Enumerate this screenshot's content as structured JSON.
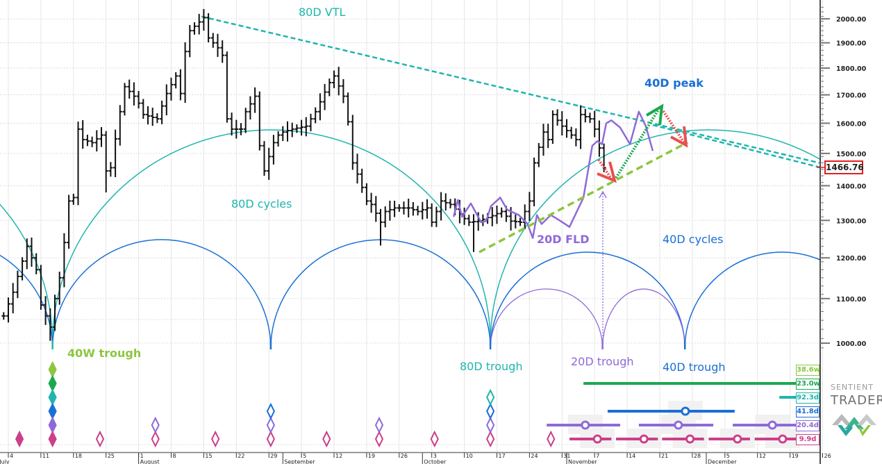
{
  "chart_data": {
    "type": "bar",
    "subtype": "ohlc-price-with-cycle-analysis",
    "price_axis": {
      "ticks": [
        "2000.00",
        "1900.00",
        "1800.00",
        "1700.00",
        "1600.00",
        "1500.00",
        "1400.00",
        "1300.00",
        "1200.00",
        "1100.00",
        "1000.00"
      ],
      "tick_values": [
        2000,
        1900,
        1800,
        1700,
        1600,
        1500,
        1400,
        1300,
        1200,
        1100,
        1000
      ],
      "scale": "log",
      "last_price": "1466.76",
      "last_price_value": 1466.76
    },
    "x_axis": {
      "day_origin": "July 4",
      "day_ticks": [
        {
          "day": 0,
          "label": "4"
        },
        {
          "day": 7,
          "label": "11"
        },
        {
          "day": 14,
          "label": "18"
        },
        {
          "day": 21,
          "label": "25"
        },
        {
          "day": 28,
          "label": "1"
        },
        {
          "day": 35,
          "label": "8"
        },
        {
          "day": 42,
          "label": "15"
        },
        {
          "day": 49,
          "label": "22"
        },
        {
          "day": 56,
          "label": "29"
        },
        {
          "day": 63,
          "label": "5"
        },
        {
          "day": 70,
          "label": "12"
        },
        {
          "day": 77,
          "label": "19"
        },
        {
          "day": 84,
          "label": "26"
        },
        {
          "day": 91,
          "label": "3"
        },
        {
          "day": 98,
          "label": "10"
        },
        {
          "day": 105,
          "label": "17"
        },
        {
          "day": 112,
          "label": "24"
        },
        {
          "day": 119,
          "label": "31"
        },
        {
          "day": 126,
          "label": "7"
        },
        {
          "day": 133,
          "label": "14"
        },
        {
          "day": 140,
          "label": "21"
        },
        {
          "day": 147,
          "label": "28"
        },
        {
          "day": 154,
          "label": "5"
        },
        {
          "day": 161,
          "label": "12"
        },
        {
          "day": 168,
          "label": "19"
        },
        {
          "day": 175,
          "label": "26"
        }
      ],
      "months": [
        {
          "day": -2.2,
          "label": "July"
        },
        {
          "day": 28,
          "label": "August"
        },
        {
          "day": 59,
          "label": "September"
        },
        {
          "day": 89,
          "label": "October"
        },
        {
          "day": 120,
          "label": "November"
        },
        {
          "day": 150,
          "label": "December"
        }
      ]
    },
    "price_close_keypoints": [
      [
        -1,
        1060
      ],
      [
        1,
        1115
      ],
      [
        4,
        1230
      ],
      [
        6,
        1170
      ],
      [
        7,
        1085
      ],
      [
        9,
        1035
      ],
      [
        10,
        1100
      ],
      [
        11,
        1150
      ],
      [
        12,
        1240
      ],
      [
        13,
        1355
      ],
      [
        14,
        1365
      ],
      [
        15,
        1580
      ],
      [
        16,
        1545
      ],
      [
        18,
        1535
      ],
      [
        20,
        1560
      ],
      [
        21,
        1445
      ],
      [
        22,
        1455
      ],
      [
        24,
        1640
      ],
      [
        25,
        1730
      ],
      [
        27,
        1695
      ],
      [
        28,
        1670
      ],
      [
        29,
        1630
      ],
      [
        32,
        1615
      ],
      [
        34,
        1705
      ],
      [
        36,
        1770
      ],
      [
        37,
        1705
      ],
      [
        38,
        1865
      ],
      [
        39,
        1950
      ],
      [
        42,
        2005
      ],
      [
        43,
        1920
      ],
      [
        45,
        1880
      ],
      [
        46,
        1850
      ],
      [
        47,
        1615
      ],
      [
        48,
        1580
      ],
      [
        50,
        1580
      ],
      [
        51,
        1640
      ],
      [
        53,
        1695
      ],
      [
        54,
        1525
      ],
      [
        55,
        1445
      ],
      [
        57,
        1535
      ],
      [
        58,
        1560
      ],
      [
        59,
        1570
      ],
      [
        61,
        1580
      ],
      [
        64,
        1590
      ],
      [
        66,
        1640
      ],
      [
        69,
        1745
      ],
      [
        70,
        1770
      ],
      [
        72,
        1695
      ],
      [
        73,
        1605
      ],
      [
        74,
        1470
      ],
      [
        75,
        1435
      ],
      [
        77,
        1355
      ],
      [
        78,
        1345
      ],
      [
        80,
        1295
      ],
      [
        81,
        1325
      ],
      [
        83,
        1335
      ],
      [
        86,
        1335
      ],
      [
        88,
        1325
      ],
      [
        90,
        1335
      ],
      [
        91,
        1295
      ],
      [
        93,
        1355
      ],
      [
        95,
        1345
      ],
      [
        98,
        1305
      ],
      [
        99,
        1295
      ],
      [
        101,
        1298
      ],
      [
        104,
        1313
      ],
      [
        106,
        1325
      ],
      [
        108,
        1298
      ],
      [
        110,
        1295
      ],
      [
        112,
        1355
      ],
      [
        113,
        1470
      ],
      [
        115,
        1570
      ],
      [
        116,
        1545
      ],
      [
        117,
        1630
      ],
      [
        119,
        1590
      ],
      [
        122,
        1545
      ],
      [
        123,
        1630
      ],
      [
        125,
        1615
      ],
      [
        126,
        1580
      ],
      [
        128,
        1455
      ]
    ],
    "low_spikes": [
      [
        9,
        1005
      ],
      [
        100,
        1215
      ],
      [
        80,
        1232
      ],
      [
        21,
        1380
      ],
      [
        55,
        1430
      ]
    ],
    "fld_20d": [
      [
        95.7,
        1310
      ],
      [
        96.6,
        1358
      ],
      [
        97.5,
        1310
      ],
      [
        99.4,
        1348
      ],
      [
        101.6,
        1295
      ],
      [
        102.7,
        1298
      ],
      [
        103.7,
        1340
      ],
      [
        105.7,
        1365
      ],
      [
        107.2,
        1330
      ],
      [
        109.7,
        1315
      ],
      [
        111.6,
        1290
      ],
      [
        112.7,
        1252
      ],
      [
        113.6,
        1315
      ],
      [
        114.6,
        1290
      ],
      [
        116.6,
        1315
      ],
      [
        118.7,
        1298
      ],
      [
        120.6,
        1282
      ],
      [
        123.6,
        1365
      ],
      [
        125.5,
        1525
      ],
      [
        126.6,
        1540
      ],
      [
        127.6,
        1530
      ],
      [
        128.5,
        1600
      ],
      [
        129.6,
        1610
      ],
      [
        131.5,
        1585
      ],
      [
        133.6,
        1530
      ],
      [
        135.5,
        1640
      ],
      [
        137.0,
        1590
      ],
      [
        138.5,
        1508
      ]
    ],
    "cycle_troughs": {
      "40W": [
        9.5
      ],
      "80D": [
        9.5,
        103.6
      ],
      "40D": [
        9.5,
        56.4,
        103.6,
        145.4
      ],
      "20D": [
        103.6,
        127.7,
        145.4
      ]
    },
    "vtl_80d": {
      "from": [
        41.5,
        2010
      ],
      "to": [
        174.3,
        1470
      ]
    },
    "annotations": {
      "vtl": "80D VTL",
      "peak40": "40D peak",
      "cycles80": "80D cycles",
      "fld20": "20D FLD",
      "cycles40": "40D cycles",
      "trough40w": "40W trough",
      "trough80d": "80D trough",
      "trough20d": "20D trough",
      "trough40d": "40D trough"
    },
    "cycle_lengths": [
      {
        "label": "38.6w",
        "color": "#8cc63f"
      },
      {
        "label": "23.0w",
        "color": "#1aa84f"
      },
      {
        "label": "92.3d",
        "color": "#1fb5ad"
      },
      {
        "label": "41.8d",
        "color": "#1a6fd6"
      },
      {
        "label": "20.4d",
        "color": "#8e6ad8"
      },
      {
        "label": "9.9d",
        "color": "#cc3f8a"
      }
    ],
    "trough_markers": [
      {
        "row": 0,
        "day": 9.5,
        "filled": true
      },
      {
        "row": 1,
        "day": 9.5,
        "filled": true
      },
      {
        "row": 2,
        "day": 9.5,
        "filled": true
      },
      {
        "row": 3,
        "day": 9.5,
        "filled": true
      },
      {
        "row": 4,
        "day": 9.5,
        "filled": true
      },
      {
        "row": 5,
        "day": 9.5,
        "filled": true
      },
      {
        "row": 5,
        "day": 2.4,
        "filled": true
      },
      {
        "row": 5,
        "day": 19.7,
        "filled": false
      },
      {
        "row": 5,
        "day": 31.6,
        "filled": false
      },
      {
        "row": 4,
        "day": 31.6,
        "filled": false
      },
      {
        "row": 5,
        "day": 44.5,
        "filled": false
      },
      {
        "row": 5,
        "day": 56.4,
        "filled": false
      },
      {
        "row": 4,
        "day": 56.4,
        "filled": false
      },
      {
        "row": 3,
        "day": 56.4,
        "filled": false
      },
      {
        "row": 5,
        "day": 68.4,
        "filled": false
      },
      {
        "row": 5,
        "day": 79.7,
        "filled": false
      },
      {
        "row": 4,
        "day": 79.7,
        "filled": false
      },
      {
        "row": 5,
        "day": 91.6,
        "filled": false
      },
      {
        "row": 5,
        "day": 103.6,
        "filled": false
      },
      {
        "row": 4,
        "day": 103.6,
        "filled": false
      },
      {
        "row": 3,
        "day": 103.6,
        "filled": false
      },
      {
        "row": 2,
        "day": 103.6,
        "filled": false
      },
      {
        "row": 5,
        "day": 116.6,
        "filled": false
      }
    ],
    "projection_ranges": [
      {
        "row": 1,
        "from": 123.6,
        "to": 172.6
      },
      {
        "row": 2,
        "from": 165.7,
        "to": 172.6
      },
      {
        "row": 3,
        "from": 128.8,
        "to": 156.1,
        "center": 145.5
      },
      {
        "row": 4,
        "from": 115.7,
        "to": 131.5,
        "center": 124.0
      },
      {
        "row": 4,
        "from": 135.5,
        "to": 151.5,
        "center": 144.0
      },
      {
        "row": 4,
        "from": 155.7,
        "to": 172.6,
        "center": 164.2
      },
      {
        "row": 5,
        "from": 120.6,
        "to": 129.6,
        "center": 126.6
      },
      {
        "row": 5,
        "from": 130.6,
        "to": 139.6,
        "center": 136.6
      },
      {
        "row": 5,
        "from": 140.5,
        "to": 149.5,
        "center": 146.5
      },
      {
        "row": 5,
        "from": 150.5,
        "to": 159.4,
        "center": 156.7
      },
      {
        "row": 5,
        "from": 160.4,
        "to": 172.6,
        "center": 166.4
      }
    ],
    "colors": {
      "teal": "#1fb5ad",
      "blue": "#1a6fd6",
      "purple": "#8e6ad8",
      "magenta": "#cc3f8a",
      "lime": "#8cc63f",
      "green": "#1aa84f",
      "red": "#e8504f",
      "price": "#111111"
    }
  },
  "logo": {
    "line1": "SENTIENT",
    "line2": "TRADER"
  }
}
